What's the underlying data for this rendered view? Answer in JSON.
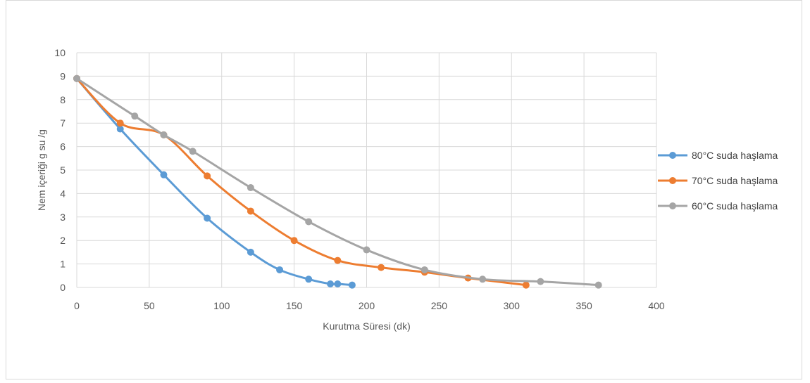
{
  "chart_data": {
    "type": "line",
    "title": "",
    "xlabel": "Kurutma Süresi (dk)",
    "ylabel": "Nem içeriği g su /g",
    "xlim": [
      0,
      400
    ],
    "ylim": [
      0,
      10
    ],
    "xticks": [
      "0",
      "50",
      "100",
      "150",
      "200",
      "250",
      "300",
      "350",
      "400"
    ],
    "yticks": [
      "0",
      "1",
      "2",
      "3",
      "4",
      "5",
      "6",
      "7",
      "8",
      "9",
      "10"
    ],
    "grid": true,
    "smooth": true,
    "legend_position": "right",
    "series": [
      {
        "name": "80°C suda haşlama",
        "color": "#5b9bd5",
        "points": [
          [
            0,
            8.9
          ],
          [
            30,
            6.75
          ],
          [
            60,
            4.8
          ],
          [
            90,
            2.95
          ],
          [
            120,
            1.5
          ],
          [
            140,
            0.75
          ],
          [
            160,
            0.35
          ],
          [
            175,
            0.15
          ],
          [
            180,
            0.15
          ],
          [
            190,
            0.1
          ]
        ]
      },
      {
        "name": "70°C suda haşlama",
        "color": "#ed7d31",
        "points": [
          [
            0,
            8.9
          ],
          [
            30,
            7.0
          ],
          [
            60,
            6.5
          ],
          [
            90,
            4.75
          ],
          [
            120,
            3.25
          ],
          [
            150,
            2.0
          ],
          [
            180,
            1.15
          ],
          [
            210,
            0.85
          ],
          [
            240,
            0.65
          ],
          [
            270,
            0.4
          ],
          [
            310,
            0.1
          ]
        ]
      },
      {
        "name": "60°C suda haşlama",
        "color": "#a5a5a5",
        "points": [
          [
            0,
            8.9
          ],
          [
            40,
            7.3
          ],
          [
            60,
            6.5
          ],
          [
            80,
            5.8
          ],
          [
            120,
            4.25
          ],
          [
            160,
            2.8
          ],
          [
            200,
            1.6
          ],
          [
            240,
            0.75
          ],
          [
            280,
            0.35
          ],
          [
            320,
            0.25
          ],
          [
            360,
            0.1
          ]
        ]
      }
    ]
  }
}
